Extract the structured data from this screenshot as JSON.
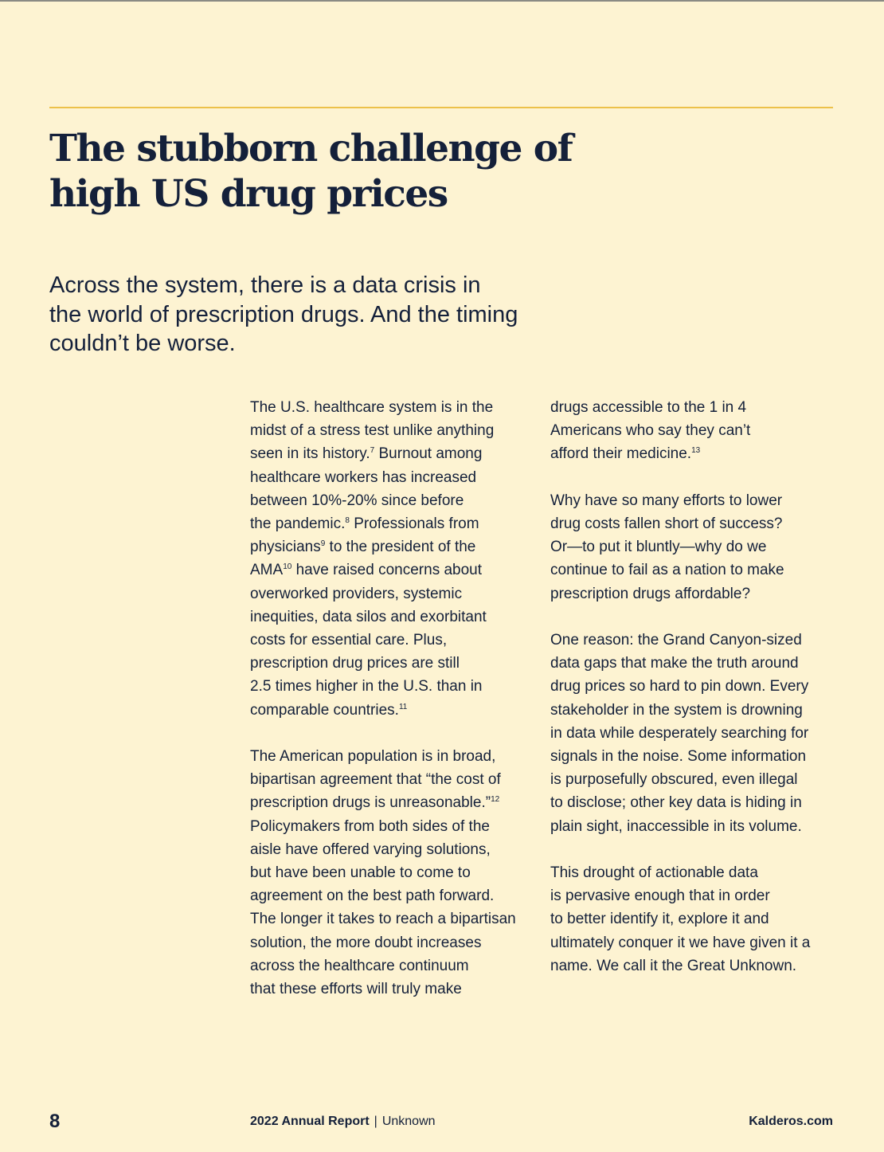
{
  "header": {
    "title_lines": [
      "The stubborn challenge of",
      "high US drug prices"
    ]
  },
  "lead_lines": [
    "Across the system, there is a data crisis in",
    "the world of prescription drugs. And the timing",
    "couldn’t be worse."
  ],
  "body": {
    "left_column": [
      {
        "lines": [
          {
            "text": "The U.S. healthcare system is in the"
          },
          {
            "text": "midst of a stress test unlike anything"
          },
          {
            "text": "seen in its history.",
            "sup": "7",
            "after": " Burnout among"
          },
          {
            "text": "healthcare workers has increased"
          },
          {
            "text": "between 10%-20% since before"
          },
          {
            "text": "the pandemic.",
            "sup": "8",
            "after": " Professionals from"
          },
          {
            "text": "physicians",
            "sup": "9",
            "after": " to the president of the"
          },
          {
            "text": "AMA",
            "sup": "10",
            "after": " have raised concerns about"
          },
          {
            "text": "overworked providers, systemic"
          },
          {
            "text": "inequities, data silos and exorbitant"
          },
          {
            "text": "costs for essential care. Plus,"
          },
          {
            "text": "prescription drug prices are still"
          },
          {
            "text": "2.5 times higher in the U.S. than in"
          },
          {
            "text": "comparable countries.",
            "sup": "11"
          }
        ]
      },
      {
        "lines": [
          {
            "text": "The American population is in broad,"
          },
          {
            "text": "bipartisan agreement that “the cost of"
          },
          {
            "text": "prescription drugs is unreasonable.”",
            "sup": "12"
          },
          {
            "text": "Policymakers from both sides of the"
          },
          {
            "text": "aisle have offered varying solutions,"
          },
          {
            "text": "but have been unable to come to"
          },
          {
            "text": "agreement on the best path forward."
          },
          {
            "text": "The longer it takes to reach a bipartisan"
          },
          {
            "text": "solution, the more doubt increases"
          },
          {
            "text": "across the healthcare continuum"
          },
          {
            "text": "that these efforts will truly make"
          }
        ]
      }
    ],
    "right_column": [
      {
        "lines": [
          {
            "text": "drugs accessible to the 1 in 4"
          },
          {
            "text": "Americans who say they can’t"
          },
          {
            "text": "afford their medicine.",
            "sup": "13"
          }
        ]
      },
      {
        "lines": [
          {
            "text": "Why have so many efforts to lower"
          },
          {
            "text": "drug costs fallen short of success?"
          },
          {
            "text": "Or—to put it bluntly—why do we"
          },
          {
            "text": "continue to fail as a nation to make"
          },
          {
            "text": "prescription drugs affordable?"
          }
        ]
      },
      {
        "lines": [
          {
            "text": "One reason: the Grand Canyon-sized"
          },
          {
            "text": "data gaps that make the truth around"
          },
          {
            "text": "drug prices so hard to pin down. Every"
          },
          {
            "text": "stakeholder in the system is drowning"
          },
          {
            "text": "in data while desperately searching for"
          },
          {
            "text": "signals in the noise. Some information"
          },
          {
            "text": "is purposefully obscured, even illegal"
          },
          {
            "text": "to disclose; other key data is hiding in"
          },
          {
            "text": "plain sight, inaccessible in its volume."
          }
        ]
      },
      {
        "lines": [
          {
            "text": "This drought of actionable data"
          },
          {
            "text": "is pervasive enough that in order"
          },
          {
            "text": "to better identify it, explore it and"
          },
          {
            "text": "ultimately conquer it we have given it a"
          },
          {
            "text": "name. We call it the Great Unknown."
          }
        ]
      }
    ]
  },
  "footer": {
    "page_number": "8",
    "report_title": "2022 Annual Report",
    "separator": "|",
    "report_subtitle": "Unknown",
    "website": "Kalderos.com"
  },
  "colors": {
    "background": "#fdf3d2",
    "text": "#14203a",
    "accent_rule": "#ecc14a"
  }
}
